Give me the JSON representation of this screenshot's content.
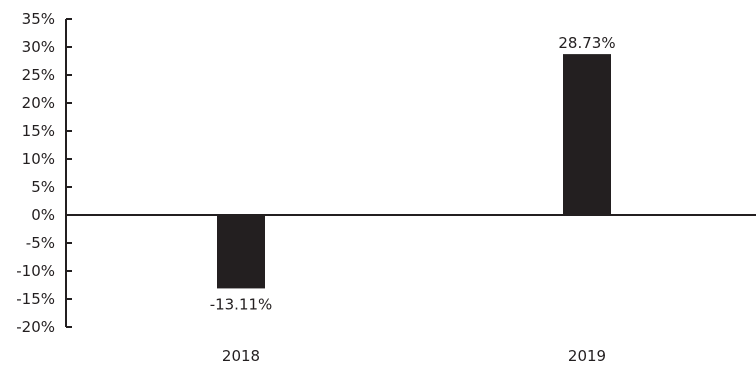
{
  "chart_data": {
    "type": "bar",
    "categories": [
      "2018",
      "2019"
    ],
    "values": [
      -13.11,
      28.73
    ],
    "data_labels": [
      "-13.11%",
      "28.73%"
    ],
    "ylim": [
      -20,
      35
    ],
    "yticks": [
      35,
      30,
      25,
      20,
      15,
      10,
      5,
      0,
      -5,
      -10,
      -15,
      -20
    ],
    "ytick_labels": [
      "35%",
      "30%",
      "25%",
      "20%",
      "15%",
      "10%",
      "5%",
      "0%",
      "-5%",
      "-10%",
      "-15%",
      "-20%"
    ],
    "title": "",
    "xlabel": "",
    "ylabel": "",
    "grid": false,
    "bar_color": "#231f20",
    "axis_color": "#231f20"
  }
}
